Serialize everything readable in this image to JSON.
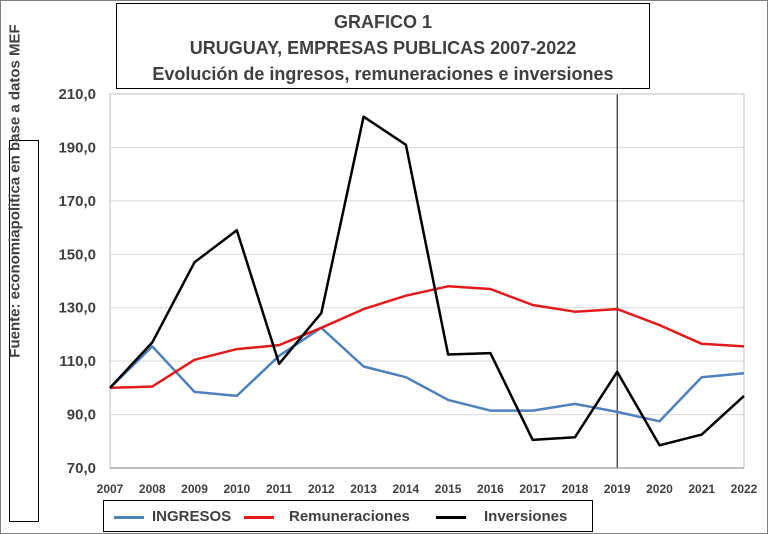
{
  "chart_data": {
    "type": "line",
    "title": [
      "GRAFICO 1",
      "URUGUAY, EMPRESAS PUBLICAS 2007-2022",
      "Evolución de ingresos, remuneraciones e inversiones"
    ],
    "source_label": "Fuente: economiapolitica en base a datos MEF",
    "xlabel": "",
    "ylabel": "",
    "x": [
      "2007",
      "2008",
      "2009",
      "2010",
      "2011",
      "2012",
      "2013",
      "2014",
      "2015",
      "2016",
      "2017",
      "2018",
      "2019",
      "2020",
      "2021",
      "2022"
    ],
    "ylim": [
      70,
      210
    ],
    "yticks": [
      70,
      90,
      110,
      130,
      150,
      170,
      190,
      210
    ],
    "ytick_labels": [
      "70,0",
      "90,0",
      "110,0",
      "130,0",
      "150,0",
      "170,0",
      "190,0",
      "210,0"
    ],
    "grid": "horizontal",
    "reference_line_x": "2019",
    "legend_position": "bottom",
    "series": [
      {
        "name": "INGRESOS",
        "color": "#4f81bd",
        "values": [
          100.0,
          115.5,
          98.5,
          97.0,
          112.0,
          122.5,
          108.0,
          104.0,
          95.5,
          91.5,
          91.5,
          94.0,
          91.0,
          87.5,
          104.0,
          105.5
        ]
      },
      {
        "name": "Remuneraciones",
        "color": "#e31a1c",
        "values": [
          100.0,
          100.5,
          110.5,
          114.5,
          116.0,
          122.5,
          129.5,
          134.5,
          138.0,
          137.0,
          131.0,
          128.5,
          129.5,
          123.5,
          116.5,
          115.5
        ]
      },
      {
        "name": "Inversiones",
        "color": "#000000",
        "values": [
          100.0,
          117.0,
          147.0,
          159.0,
          109.0,
          128.0,
          201.5,
          191.0,
          112.5,
          113.0,
          80.5,
          81.5,
          106.0,
          78.5,
          82.5,
          97.0
        ]
      }
    ]
  }
}
